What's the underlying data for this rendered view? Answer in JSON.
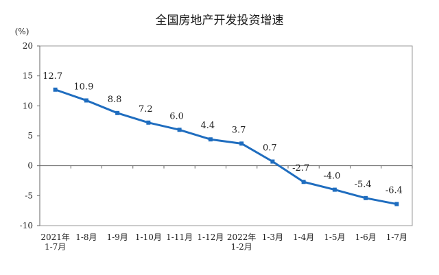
{
  "chart_data": {
    "type": "line",
    "title": "全国房地产开发投资增速",
    "ylabel": "(%)",
    "xlabel": "",
    "ylim": [
      -10,
      20
    ],
    "y_ticks": [
      -10,
      -5,
      0,
      5,
      10,
      15,
      20
    ],
    "categories": [
      [
        "2021年",
        "1-7月"
      ],
      [
        "1-8月"
      ],
      [
        "1-9月"
      ],
      [
        "1-10月"
      ],
      [
        "1-11月"
      ],
      [
        "1-12月"
      ],
      [
        "2022年",
        "1-2月"
      ],
      [
        "1-3月"
      ],
      [
        "1-4月"
      ],
      [
        "1-5月"
      ],
      [
        "1-6月"
      ],
      [
        "1-7月"
      ]
    ],
    "series": [
      {
        "values": [
          12.7,
          10.9,
          8.8,
          7.2,
          6.0,
          4.4,
          3.7,
          0.7,
          -2.7,
          -4.0,
          -5.4,
          -6.4
        ],
        "labels": [
          "12.7",
          "10.9",
          "8.8",
          "7.2",
          "6.0",
          "4.4",
          "3.7",
          "0.7",
          "-2.7",
          "-4.0",
          "-5.4",
          "-6.4"
        ]
      }
    ],
    "colors": {
      "line": "#1f6dbf",
      "marker": "#1f6dbf",
      "axis": "#666666",
      "border": "#9a9a9a"
    },
    "grid": false,
    "legend": "none"
  }
}
